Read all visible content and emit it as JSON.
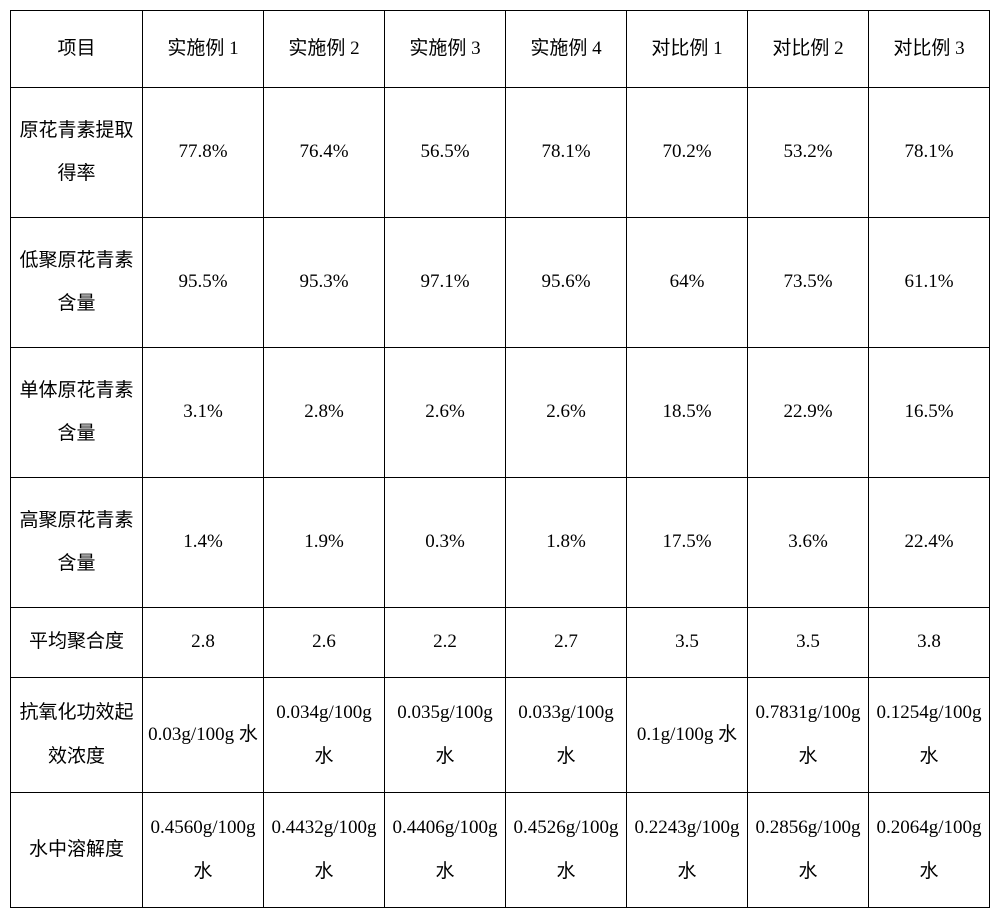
{
  "table": {
    "columns": [
      "项目",
      "实施例 1",
      "实施例 2",
      "实施例 3",
      "实施例 4",
      "对比例 1",
      "对比例 2",
      "对比例 3"
    ],
    "rows": [
      {
        "label": "原花青素提取得率",
        "cells": [
          "77.8%",
          "76.4%",
          "56.5%",
          "78.1%",
          "70.2%",
          "53.2%",
          "78.1%"
        ]
      },
      {
        "label": "低聚原花青素含量",
        "cells": [
          "95.5%",
          "95.3%",
          "97.1%",
          "95.6%",
          "64%",
          "73.5%",
          "61.1%"
        ]
      },
      {
        "label": "单体原花青素含量",
        "cells": [
          "3.1%",
          "2.8%",
          "2.6%",
          "2.6%",
          "18.5%",
          "22.9%",
          "16.5%"
        ]
      },
      {
        "label": "高聚原花青素含量",
        "cells": [
          "1.4%",
          "1.9%",
          "0.3%",
          "1.8%",
          "17.5%",
          "3.6%",
          "22.4%"
        ]
      },
      {
        "label": "平均聚合度",
        "cells": [
          "2.8",
          "2.6",
          "2.2",
          "2.7",
          "3.5",
          "3.5",
          "3.8"
        ]
      },
      {
        "label": "抗氧化功效起效浓度",
        "cells": [
          "0.03g/100g 水",
          "0.034g/100g 水",
          "0.035g/100g 水",
          "0.033g/100g 水",
          "0.1g/100g 水",
          "0.7831g/100g 水",
          "0.1254g/100g 水"
        ]
      },
      {
        "label": "水中溶解度",
        "cells": [
          "0.4560g/100g 水",
          "0.4432g/100g 水",
          "0.4406g/100g 水",
          "0.4526g/100g 水",
          "0.2243g/100g 水",
          "0.2856g/100g 水",
          "0.2064g/100g 水"
        ]
      }
    ],
    "styling": {
      "border_color": "#000000",
      "background_color": "#ffffff",
      "text_color": "#000000",
      "font_family": "SimSun",
      "cell_font_size": 19,
      "header_row_height": 60,
      "tall_row_height": 130,
      "short_row_height": 70,
      "first_col_width": 132,
      "data_col_width": 121
    }
  }
}
